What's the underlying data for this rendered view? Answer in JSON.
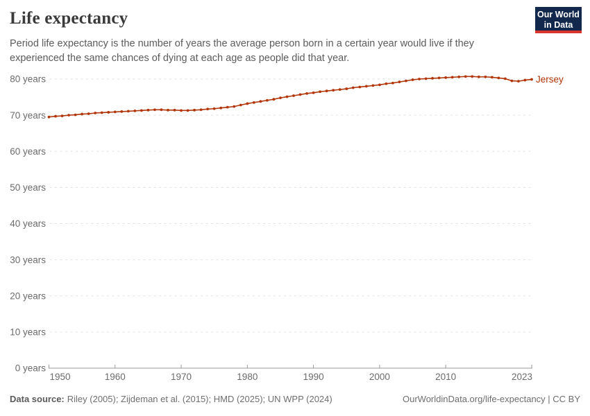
{
  "header": {
    "title": "Life expectancy",
    "subtitle": "Period life expectancy is the number of years the average person born in a certain year would live if they experienced the same chances of dying at each age as people did that year."
  },
  "logo": {
    "line1": "Our World",
    "line2": "in Data",
    "bg_color": "#12294d",
    "accent_color": "#d8352e"
  },
  "chart_data": {
    "type": "line",
    "title": "Life expectancy",
    "xlabel": "",
    "ylabel": "",
    "xlim": [
      1950,
      2023
    ],
    "ylim": [
      0,
      85
    ],
    "grid": "horizontal-dashed",
    "legend_position": "end-of-line-label",
    "x_ticks": [
      1950,
      1960,
      1970,
      1980,
      1990,
      2000,
      2010,
      2023
    ],
    "y_ticks": [
      0,
      10,
      20,
      30,
      40,
      50,
      60,
      70,
      80
    ],
    "y_tick_suffix": " years",
    "x": [
      1950,
      1951,
      1952,
      1953,
      1954,
      1955,
      1956,
      1957,
      1958,
      1959,
      1960,
      1961,
      1962,
      1963,
      1964,
      1965,
      1966,
      1967,
      1968,
      1969,
      1970,
      1971,
      1972,
      1973,
      1974,
      1975,
      1976,
      1977,
      1978,
      1979,
      1980,
      1981,
      1982,
      1983,
      1984,
      1985,
      1986,
      1987,
      1988,
      1989,
      1990,
      1991,
      1992,
      1993,
      1994,
      1995,
      1996,
      1997,
      1998,
      1999,
      2000,
      2001,
      2002,
      2003,
      2004,
      2005,
      2006,
      2007,
      2008,
      2009,
      2010,
      2011,
      2012,
      2013,
      2014,
      2015,
      2016,
      2017,
      2018,
      2019,
      2020,
      2021,
      2022,
      2023
    ],
    "series": [
      {
        "name": "Jersey",
        "color": "#B13507",
        "values": [
          69.5,
          69.7,
          69.8,
          70.0,
          70.1,
          70.3,
          70.4,
          70.6,
          70.7,
          70.8,
          70.9,
          71.0,
          71.1,
          71.2,
          71.3,
          71.4,
          71.5,
          71.5,
          71.4,
          71.4,
          71.3,
          71.3,
          71.4,
          71.5,
          71.7,
          71.8,
          72.0,
          72.2,
          72.4,
          72.8,
          73.2,
          73.5,
          73.8,
          74.1,
          74.4,
          74.8,
          75.1,
          75.4,
          75.7,
          76.0,
          76.2,
          76.5,
          76.7,
          76.9,
          77.1,
          77.3,
          77.6,
          77.8,
          78.0,
          78.2,
          78.4,
          78.7,
          78.9,
          79.2,
          79.5,
          79.8,
          80.0,
          80.1,
          80.2,
          80.3,
          80.4,
          80.5,
          80.6,
          80.7,
          80.7,
          80.6,
          80.6,
          80.5,
          80.3,
          80.1,
          79.5,
          79.4,
          79.7,
          79.9
        ]
      }
    ],
    "grid_color": "#e2e2e2",
    "axis_color": "#9a9a9a",
    "label_color": "#6b6b6b"
  },
  "footer": {
    "datasource_label": "Data source:",
    "datasource_text": "Riley (2005); Zijdeman et al. (2015); HMD (2025); UN WPP (2024)",
    "right_text": "OurWorldinData.org/life-expectancy | CC BY"
  }
}
